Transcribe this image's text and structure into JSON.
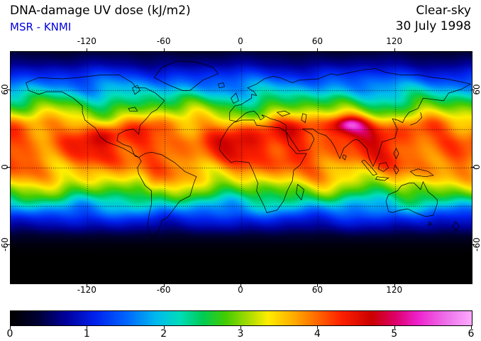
{
  "header": {
    "title": "DNA-damage UV dose (kJ/m2)",
    "subtitle": "MSR - KNMI",
    "subtitle_color": "#0000dd",
    "condition": "Clear-sky",
    "date": "30 July 1998"
  },
  "axes": {
    "lon_tick_labels": [
      -120,
      -60,
      0,
      60,
      120
    ],
    "lat_tick_labels": [
      60,
      0,
      -60
    ],
    "lon_range": [
      -180,
      180
    ],
    "lat_range": [
      -90,
      90
    ],
    "grid_lon_step_deg": 60,
    "grid_lat_step_deg": 30
  },
  "colorbar": {
    "min": 0,
    "max": 6,
    "tick_labels": [
      0,
      1,
      2,
      3,
      4,
      5,
      6
    ],
    "units": "kJ/m2"
  },
  "chart_data": {
    "type": "heatmap",
    "title": "DNA-damage UV dose (kJ/m2)",
    "subtitle": "MSR - KNMI",
    "condition": "Clear-sky",
    "date": "30 July 1998",
    "value_units": "kJ/m2",
    "value_range": [
      0,
      6
    ],
    "lon_range": [
      -180,
      180
    ],
    "lat_range": [
      -90,
      90
    ],
    "colormap": [
      {
        "v": 0.0,
        "c": "#000000"
      },
      {
        "v": 0.35,
        "c": "#000033"
      },
      {
        "v": 0.7,
        "c": "#000099"
      },
      {
        "v": 1.1,
        "c": "#0022ee"
      },
      {
        "v": 1.5,
        "c": "#0066ff"
      },
      {
        "v": 1.9,
        "c": "#00bbee"
      },
      {
        "v": 2.2,
        "c": "#00ddbb"
      },
      {
        "v": 2.5,
        "c": "#00cc55"
      },
      {
        "v": 2.8,
        "c": "#44cc00"
      },
      {
        "v": 3.1,
        "c": "#aadd00"
      },
      {
        "v": 3.35,
        "c": "#ffee00"
      },
      {
        "v": 3.7,
        "c": "#ffaa00"
      },
      {
        "v": 4.0,
        "c": "#ff6600"
      },
      {
        "v": 4.3,
        "c": "#ff2200"
      },
      {
        "v": 4.7,
        "c": "#cc0000"
      },
      {
        "v": 5.0,
        "c": "#dd0066"
      },
      {
        "v": 5.3,
        "c": "#ee22cc"
      },
      {
        "v": 5.7,
        "c": "#ee77ee"
      },
      {
        "v": 6.0,
        "c": "#ffaaff"
      }
    ],
    "lat_profile": {
      "lats": [
        -90,
        -70,
        -65,
        -60,
        -55,
        -50,
        -45,
        -40,
        -35,
        -30,
        -25,
        -20,
        -15,
        -10,
        -5,
        0,
        5,
        10,
        15,
        20,
        25,
        30,
        35,
        40,
        45,
        50,
        55,
        60,
        65,
        70,
        75,
        80,
        85,
        90
      ],
      "dose": [
        0,
        0,
        0.03,
        0.1,
        0.25,
        0.5,
        0.8,
        1.1,
        1.5,
        1.9,
        2.3,
        2.7,
        3.05,
        3.4,
        3.65,
        3.85,
        4.0,
        4.1,
        4.15,
        4.2,
        4.15,
        4.0,
        3.7,
        3.3,
        2.95,
        2.6,
        2.25,
        1.9,
        1.6,
        1.3,
        1.0,
        0.7,
        0.5,
        0.35
      ]
    },
    "hotspots": [
      {
        "lon": 84,
        "lat": 33,
        "amp": 1.45,
        "slon": 13,
        "slat": 5.5
      },
      {
        "lon": 85,
        "lat": 34,
        "amp": 0.4,
        "slon": 6,
        "slat": 3
      },
      {
        "lon": -70,
        "lat": -15,
        "amp": 0.5,
        "slon": 5,
        "slat": 7
      },
      {
        "lon": -106,
        "lat": 25,
        "amp": 0.35,
        "slon": 7,
        "slat": 5
      },
      {
        "lon": 20,
        "lat": 20,
        "amp": 0.22,
        "slon": 24,
        "slat": 9
      },
      {
        "lon": 44,
        "lat": 30,
        "amp": 0.3,
        "slon": 10,
        "slat": 5
      },
      {
        "lon": 38,
        "lat": 6,
        "amp": 0.3,
        "slon": 8,
        "slat": 6
      }
    ]
  }
}
